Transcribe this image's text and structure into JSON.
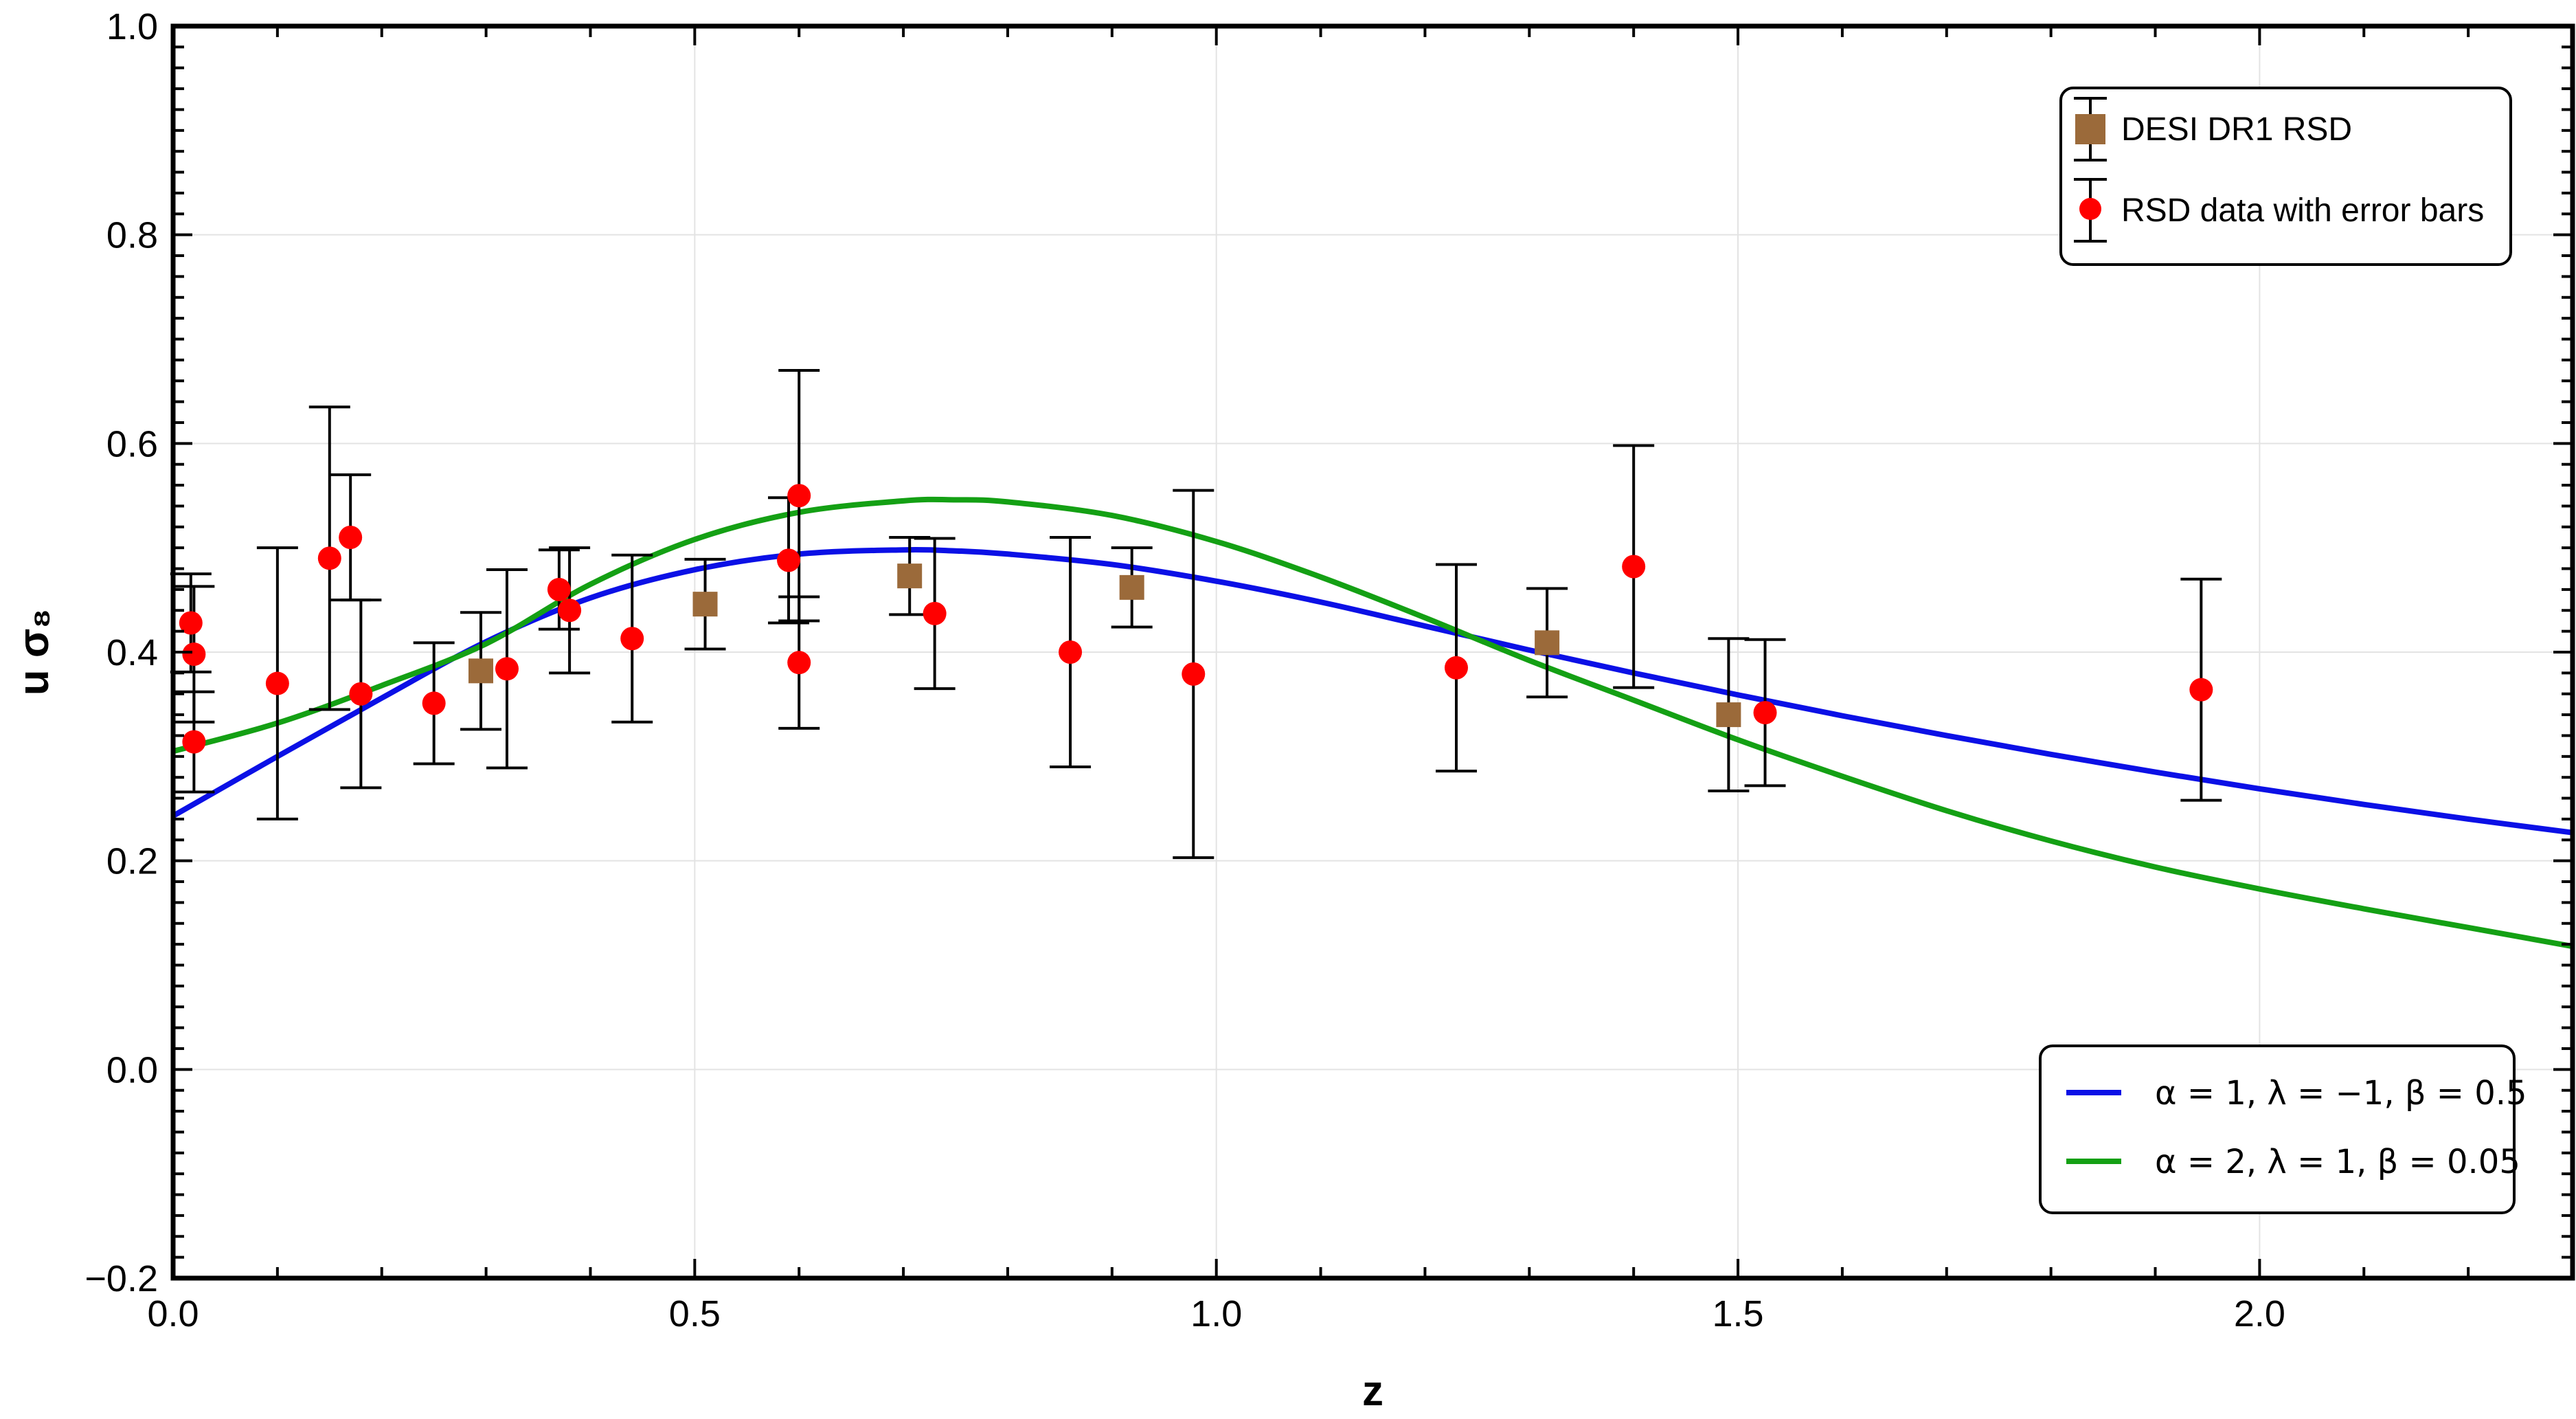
{
  "chart_data": {
    "type": "scatter",
    "xlabel": "z",
    "ylabel": "u σ₈",
    "xlim": [
      0,
      2.3
    ],
    "ylim": [
      -0.2,
      1.0
    ],
    "x_ticks": [
      "0.0",
      "0.5",
      "1.0",
      "1.5",
      "2.0"
    ],
    "x_tick_values": [
      0,
      0.5,
      1.0,
      1.5,
      2.0
    ],
    "y_ticks": [
      "−0.2",
      "0.0",
      "0.2",
      "0.4",
      "0.6",
      "0.8",
      "1.0"
    ],
    "y_tick_values": [
      -0.2,
      0,
      0.2,
      0.4,
      0.6,
      0.8,
      1.0
    ],
    "grid": true,
    "data_legend_position": "top-right",
    "model_legend_position": "bottom-right",
    "series": [
      {
        "name": "DESI DR1 RSD",
        "kind": "points",
        "marker": "square",
        "color": "#9b6a3a",
        "points": [
          {
            "x": 0.295,
            "y": 0.382,
            "lo": 0.326,
            "hi": 0.438
          },
          {
            "x": 0.51,
            "y": 0.446,
            "lo": 0.403,
            "hi": 0.489
          },
          {
            "x": 0.706,
            "y": 0.473,
            "lo": 0.436,
            "hi": 0.51
          },
          {
            "x": 0.919,
            "y": 0.462,
            "lo": 0.424,
            "hi": 0.5
          },
          {
            "x": 1.317,
            "y": 0.409,
            "lo": 0.357,
            "hi": 0.461
          },
          {
            "x": 1.491,
            "y": 0.34,
            "lo": 0.267,
            "hi": 0.413
          }
        ]
      },
      {
        "name": "RSD data with error bars",
        "kind": "points",
        "marker": "circle",
        "color": "#ff0000",
        "points": [
          {
            "x": 0.017,
            "y": 0.428,
            "lo": 0.381,
            "hi": 0.475
          },
          {
            "x": 0.02,
            "y": 0.398,
            "lo": 0.333,
            "hi": 0.463
          },
          {
            "x": 0.02,
            "y": 0.314,
            "lo": 0.266,
            "hi": 0.362
          },
          {
            "x": 0.1,
            "y": 0.37,
            "lo": 0.24,
            "hi": 0.5
          },
          {
            "x": 0.15,
            "y": 0.49,
            "lo": 0.345,
            "hi": 0.635
          },
          {
            "x": 0.17,
            "y": 0.51,
            "lo": 0.45,
            "hi": 0.57
          },
          {
            "x": 0.18,
            "y": 0.36,
            "lo": 0.27,
            "hi": 0.45
          },
          {
            "x": 0.25,
            "y": 0.351,
            "lo": 0.293,
            "hi": 0.409
          },
          {
            "x": 0.32,
            "y": 0.384,
            "lo": 0.289,
            "hi": 0.479
          },
          {
            "x": 0.37,
            "y": 0.46,
            "lo": 0.422,
            "hi": 0.498
          },
          {
            "x": 0.38,
            "y": 0.44,
            "lo": 0.38,
            "hi": 0.5
          },
          {
            "x": 0.44,
            "y": 0.413,
            "lo": 0.333,
            "hi": 0.493
          },
          {
            "x": 0.59,
            "y": 0.488,
            "lo": 0.428,
            "hi": 0.548
          },
          {
            "x": 0.6,
            "y": 0.55,
            "lo": 0.43,
            "hi": 0.67
          },
          {
            "x": 0.6,
            "y": 0.39,
            "lo": 0.327,
            "hi": 0.453
          },
          {
            "x": 0.73,
            "y": 0.437,
            "lo": 0.365,
            "hi": 0.509
          },
          {
            "x": 0.86,
            "y": 0.4,
            "lo": 0.29,
            "hi": 0.51
          },
          {
            "x": 0.978,
            "y": 0.379,
            "lo": 0.203,
            "hi": 0.555
          },
          {
            "x": 1.23,
            "y": 0.385,
            "lo": 0.286,
            "hi": 0.484
          },
          {
            "x": 1.4,
            "y": 0.482,
            "lo": 0.366,
            "hi": 0.598
          },
          {
            "x": 1.526,
            "y": 0.342,
            "lo": 0.272,
            "hi": 0.412
          },
          {
            "x": 1.944,
            "y": 0.364,
            "lo": 0.258,
            "hi": 0.47
          }
        ]
      },
      {
        "name": "α = 1, λ = −1, β = 0.5",
        "kind": "line",
        "color": "#0b10e6",
        "x": [
          0.0,
          0.1,
          0.2,
          0.3,
          0.4,
          0.5,
          0.6,
          0.7,
          0.75,
          0.8,
          0.9,
          1.0,
          1.1,
          1.2,
          1.3,
          1.4,
          1.5,
          1.6,
          1.7,
          1.8,
          1.9,
          2.0,
          2.1,
          2.2,
          2.3
        ],
        "y": [
          0.243,
          0.3,
          0.356,
          0.41,
          0.452,
          0.479,
          0.494,
          0.498,
          0.497,
          0.494,
          0.484,
          0.468,
          0.448,
          0.425,
          0.402,
          0.38,
          0.359,
          0.339,
          0.32,
          0.302,
          0.285,
          0.269,
          0.254,
          0.24,
          0.227
        ]
      },
      {
        "name": "α = 2, λ = 1, β = 0.05",
        "kind": "line",
        "color": "#14a014",
        "x": [
          0.0,
          0.1,
          0.2,
          0.3,
          0.4,
          0.5,
          0.6,
          0.7,
          0.75,
          0.8,
          0.9,
          1.0,
          1.1,
          1.2,
          1.3,
          1.4,
          1.5,
          1.6,
          1.7,
          1.8,
          1.9,
          2.0,
          2.1,
          2.2,
          2.3
        ],
        "y": [
          0.305,
          0.332,
          0.368,
          0.408,
          0.465,
          0.508,
          0.534,
          0.545,
          0.546,
          0.544,
          0.531,
          0.506,
          0.472,
          0.433,
          0.392,
          0.354,
          0.316,
          0.281,
          0.248,
          0.219,
          0.194,
          0.173,
          0.154,
          0.136,
          0.118
        ]
      }
    ]
  }
}
